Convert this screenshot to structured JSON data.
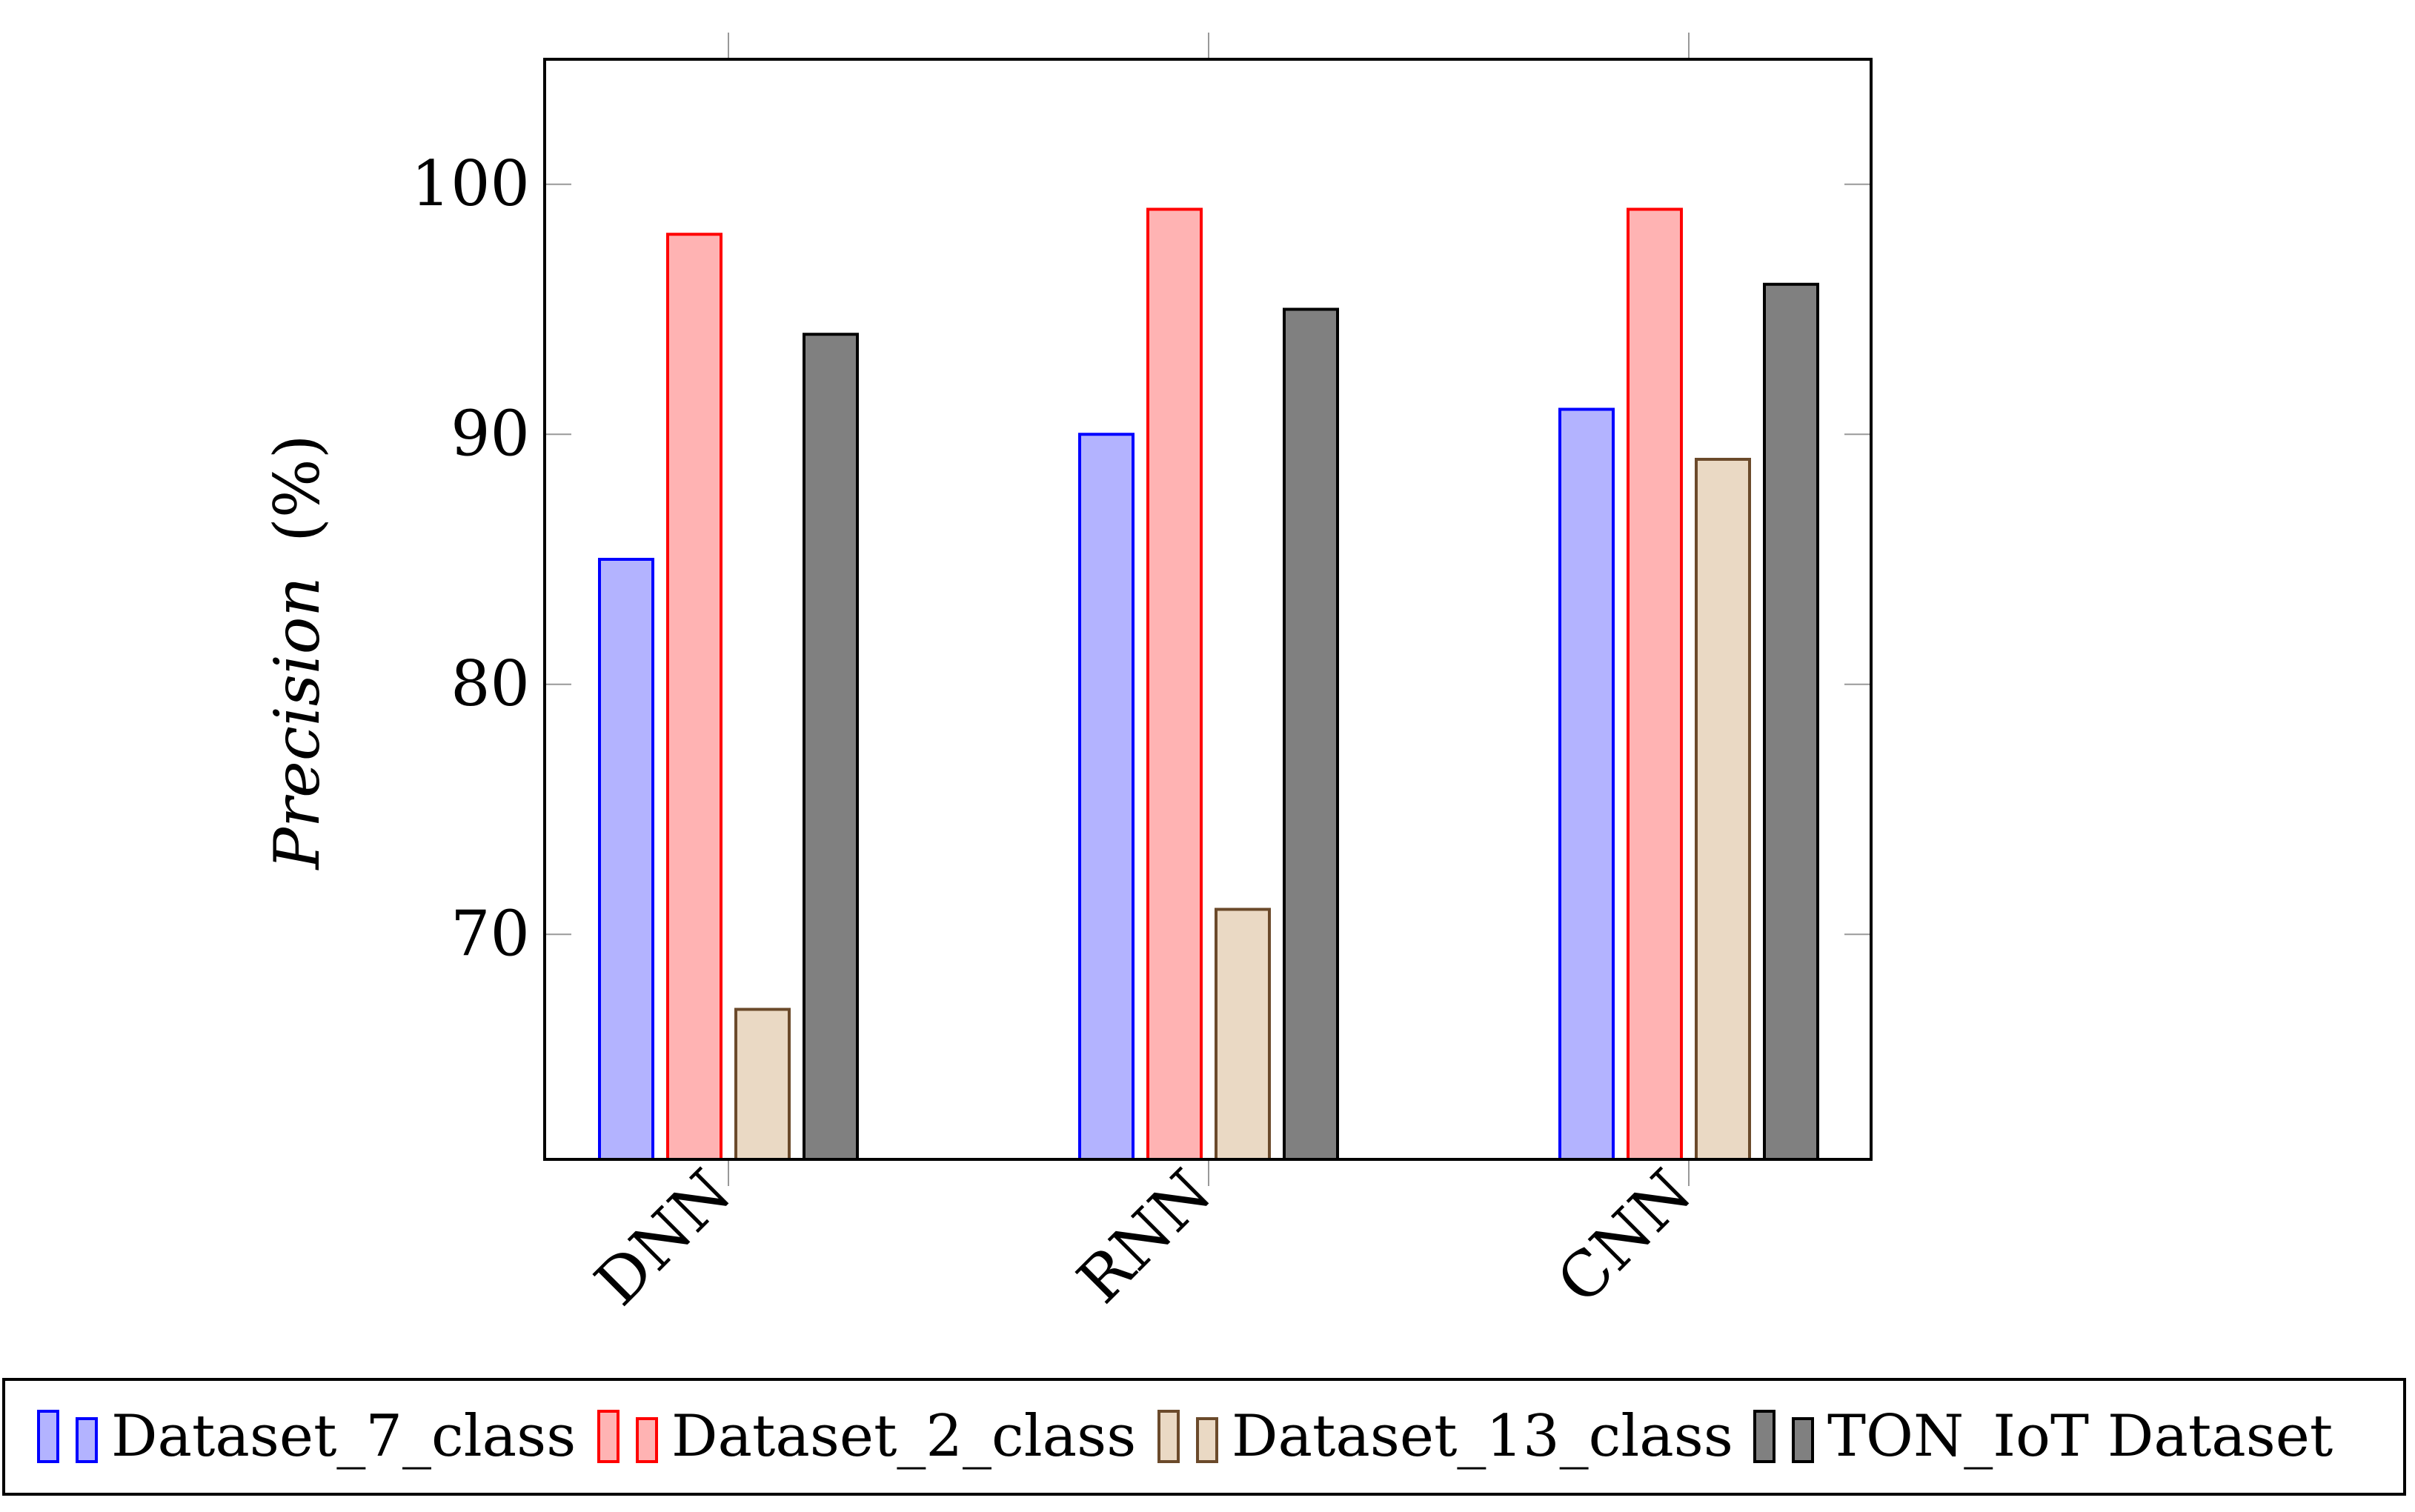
{
  "chart_data": {
    "type": "bar",
    "title": "",
    "xlabel": "",
    "ylabel_italic": "Precision",
    "ylabel_unit": "(%)",
    "categories": [
      "DNN",
      "RNN",
      "CNN"
    ],
    "ylim": [
      61,
      105
    ],
    "yticks": [
      70,
      80,
      90,
      100
    ],
    "grid": false,
    "legend_position": "bottom",
    "series": [
      {
        "name": "Dataset_7_class",
        "values": [
          85,
          90,
          91
        ],
        "fill": "#b3b3ff",
        "stroke": "#0000ff"
      },
      {
        "name": "Dataset_2_class",
        "values": [
          98,
          99,
          99
        ],
        "fill": "#ffb3b3",
        "stroke": "#ff0000"
      },
      {
        "name": "Dataset_13_class",
        "values": [
          67,
          71,
          89
        ],
        "fill": "#ead9c4",
        "stroke": "#6b4a2b"
      },
      {
        "name": "TON_IoT Dataset",
        "values": [
          94,
          95,
          96
        ],
        "fill": "#808080",
        "stroke": "#000000"
      }
    ]
  }
}
